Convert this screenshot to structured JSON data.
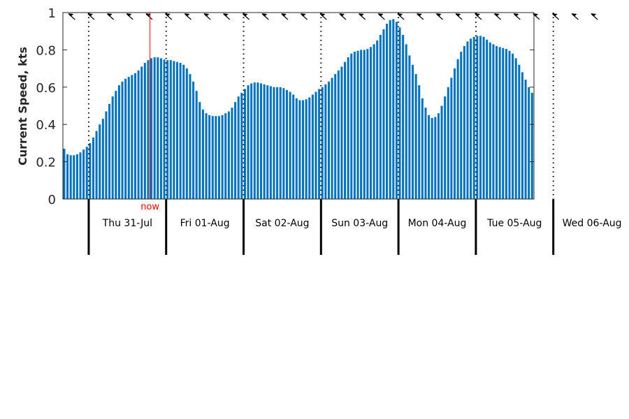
{
  "chart_data": {
    "type": "bar",
    "ylabel": "Current Speed, kts",
    "ylim": [
      0,
      1
    ],
    "y_ticks": [
      "0",
      "0.2",
      "0.4",
      "0.6",
      "0.8",
      "1"
    ],
    "grid": false,
    "bar_color": "#0072bd",
    "now_color": "#ff0000",
    "now_label": "now",
    "now_hour": 27.0,
    "hours_start": 0,
    "hours_per_bar": 1,
    "day_start_hours": [
      8,
      32,
      56,
      80,
      104,
      128,
      152
    ],
    "days": [
      "Thu 31-Jul",
      "Fri 01-Aug",
      "Sat 02-Aug",
      "Sun 03-Aug",
      "Mon 04-Aug",
      "Tue 05-Aug",
      "Wed 06-Aug"
    ],
    "direction_arrow_hours": [
      2,
      8,
      14,
      20,
      26,
      32,
      38,
      44,
      50,
      56,
      62,
      68,
      74,
      80,
      86,
      92,
      98,
      104,
      110,
      116,
      122,
      128,
      134,
      140,
      146,
      152,
      158,
      164
    ],
    "values": [
      0.27,
      0.24,
      0.235,
      0.235,
      0.24,
      0.25,
      0.265,
      0.28,
      0.3,
      0.33,
      0.365,
      0.4,
      0.43,
      0.47,
      0.51,
      0.55,
      0.58,
      0.61,
      0.63,
      0.645,
      0.655,
      0.665,
      0.675,
      0.69,
      0.71,
      0.73,
      0.745,
      0.755,
      0.76,
      0.76,
      0.755,
      0.748,
      0.745,
      0.745,
      0.74,
      0.735,
      0.73,
      0.72,
      0.7,
      0.67,
      0.63,
      0.58,
      0.52,
      0.48,
      0.46,
      0.45,
      0.445,
      0.445,
      0.445,
      0.45,
      0.46,
      0.47,
      0.49,
      0.52,
      0.55,
      0.57,
      0.59,
      0.61,
      0.62,
      0.625,
      0.625,
      0.62,
      0.615,
      0.61,
      0.605,
      0.6,
      0.6,
      0.6,
      0.595,
      0.585,
      0.575,
      0.56,
      0.54,
      0.53,
      0.53,
      0.535,
      0.545,
      0.56,
      0.575,
      0.59,
      0.6,
      0.615,
      0.63,
      0.65,
      0.67,
      0.69,
      0.71,
      0.735,
      0.76,
      0.78,
      0.79,
      0.795,
      0.8,
      0.8,
      0.805,
      0.815,
      0.83,
      0.85,
      0.88,
      0.91,
      0.94,
      0.96,
      0.965,
      0.95,
      0.92,
      0.88,
      0.83,
      0.77,
      0.72,
      0.67,
      0.61,
      0.54,
      0.49,
      0.45,
      0.435,
      0.44,
      0.46,
      0.5,
      0.55,
      0.6,
      0.65,
      0.7,
      0.75,
      0.79,
      0.82,
      0.845,
      0.86,
      0.87,
      0.875,
      0.875,
      0.87,
      0.855,
      0.84,
      0.83,
      0.82,
      0.815,
      0.81,
      0.805,
      0.795,
      0.78,
      0.755,
      0.72,
      0.68,
      0.64,
      0.6,
      0.57
    ]
  }
}
